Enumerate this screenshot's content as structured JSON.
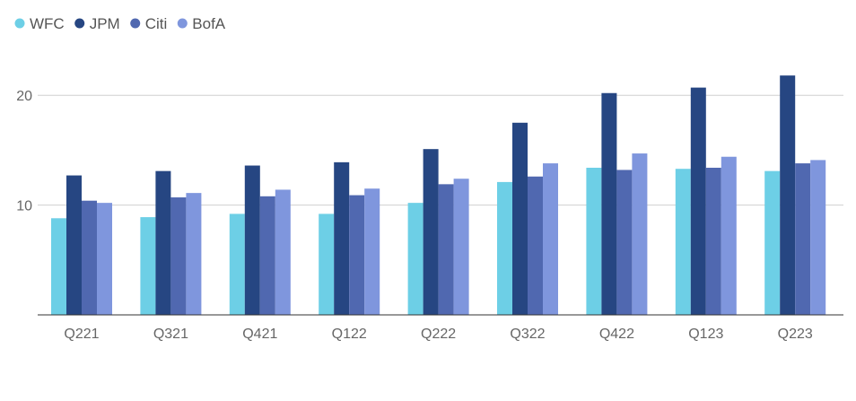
{
  "chart_data": {
    "type": "bar",
    "categories": [
      "Q221",
      "Q321",
      "Q421",
      "Q122",
      "Q222",
      "Q322",
      "Q422",
      "Q123",
      "Q223"
    ],
    "series": [
      {
        "name": "WFC",
        "color": "#6dcfe6",
        "values": [
          8.8,
          8.9,
          9.2,
          9.2,
          10.2,
          12.1,
          13.4,
          13.3,
          13.1
        ]
      },
      {
        "name": "JPM",
        "color": "#264682",
        "values": [
          12.7,
          13.1,
          13.6,
          13.9,
          15.1,
          17.5,
          20.2,
          20.7,
          21.8
        ]
      },
      {
        "name": "Citi",
        "color": "#5068b0",
        "values": [
          10.4,
          10.7,
          10.8,
          10.9,
          11.9,
          12.6,
          13.2,
          13.4,
          13.8
        ]
      },
      {
        "name": "BofA",
        "color": "#7f96dd",
        "values": [
          10.2,
          11.1,
          11.4,
          11.5,
          12.4,
          13.8,
          14.7,
          14.4,
          14.1
        ]
      }
    ],
    "yticks": [
      10,
      20
    ],
    "ylim": [
      0,
      25
    ],
    "grid": true,
    "legend": "top-left",
    "title": "",
    "xlabel": "",
    "ylabel": ""
  }
}
